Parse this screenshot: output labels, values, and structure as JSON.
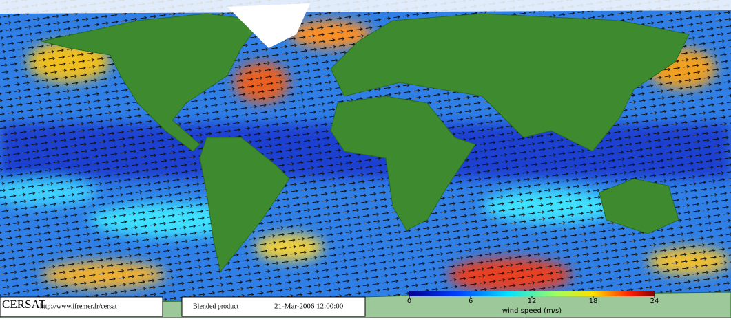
{
  "header": {
    "logo": "CERSAT",
    "url": "http://www.ifremer.fr/cersat",
    "product": "Blended product",
    "date": "21-Mar-2006 12:00:00"
  },
  "colorbar": {
    "label": "wind speed (m/s)",
    "lim": [
      0,
      24
    ],
    "ticks": [
      0,
      6,
      12,
      18,
      24
    ]
  }
}
